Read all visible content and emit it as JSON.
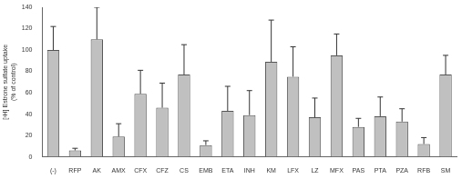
{
  "chart_data": {
    "type": "bar",
    "y_label": [
      "[³H] Estrone sulfate uptake",
      "(% of control)"
    ],
    "categories": [
      "(-)",
      "RFP",
      "AK",
      "AMX",
      "CFX",
      "CFZ",
      "CS",
      "EMB",
      "ETA",
      "INH",
      "KM",
      "LFX",
      "LZ",
      "MFX",
      "PAS",
      "PTA",
      "PZA",
      "RFB",
      "SM"
    ],
    "values": [
      100,
      6,
      110,
      19,
      59,
      46,
      77,
      11,
      43,
      39,
      89,
      75,
      37,
      95,
      28,
      38,
      33,
      12,
      77
    ],
    "errors": [
      22,
      2,
      30,
      12,
      22,
      23,
      28,
      4,
      23,
      23,
      39,
      28,
      18,
      20,
      8,
      18,
      12,
      6,
      18
    ],
    "color": "#c0c0c0",
    "ylim": [
      0,
      140
    ],
    "yticks": [
      0,
      20,
      40,
      60,
      80,
      100,
      120,
      140
    ],
    "grid": false
  }
}
